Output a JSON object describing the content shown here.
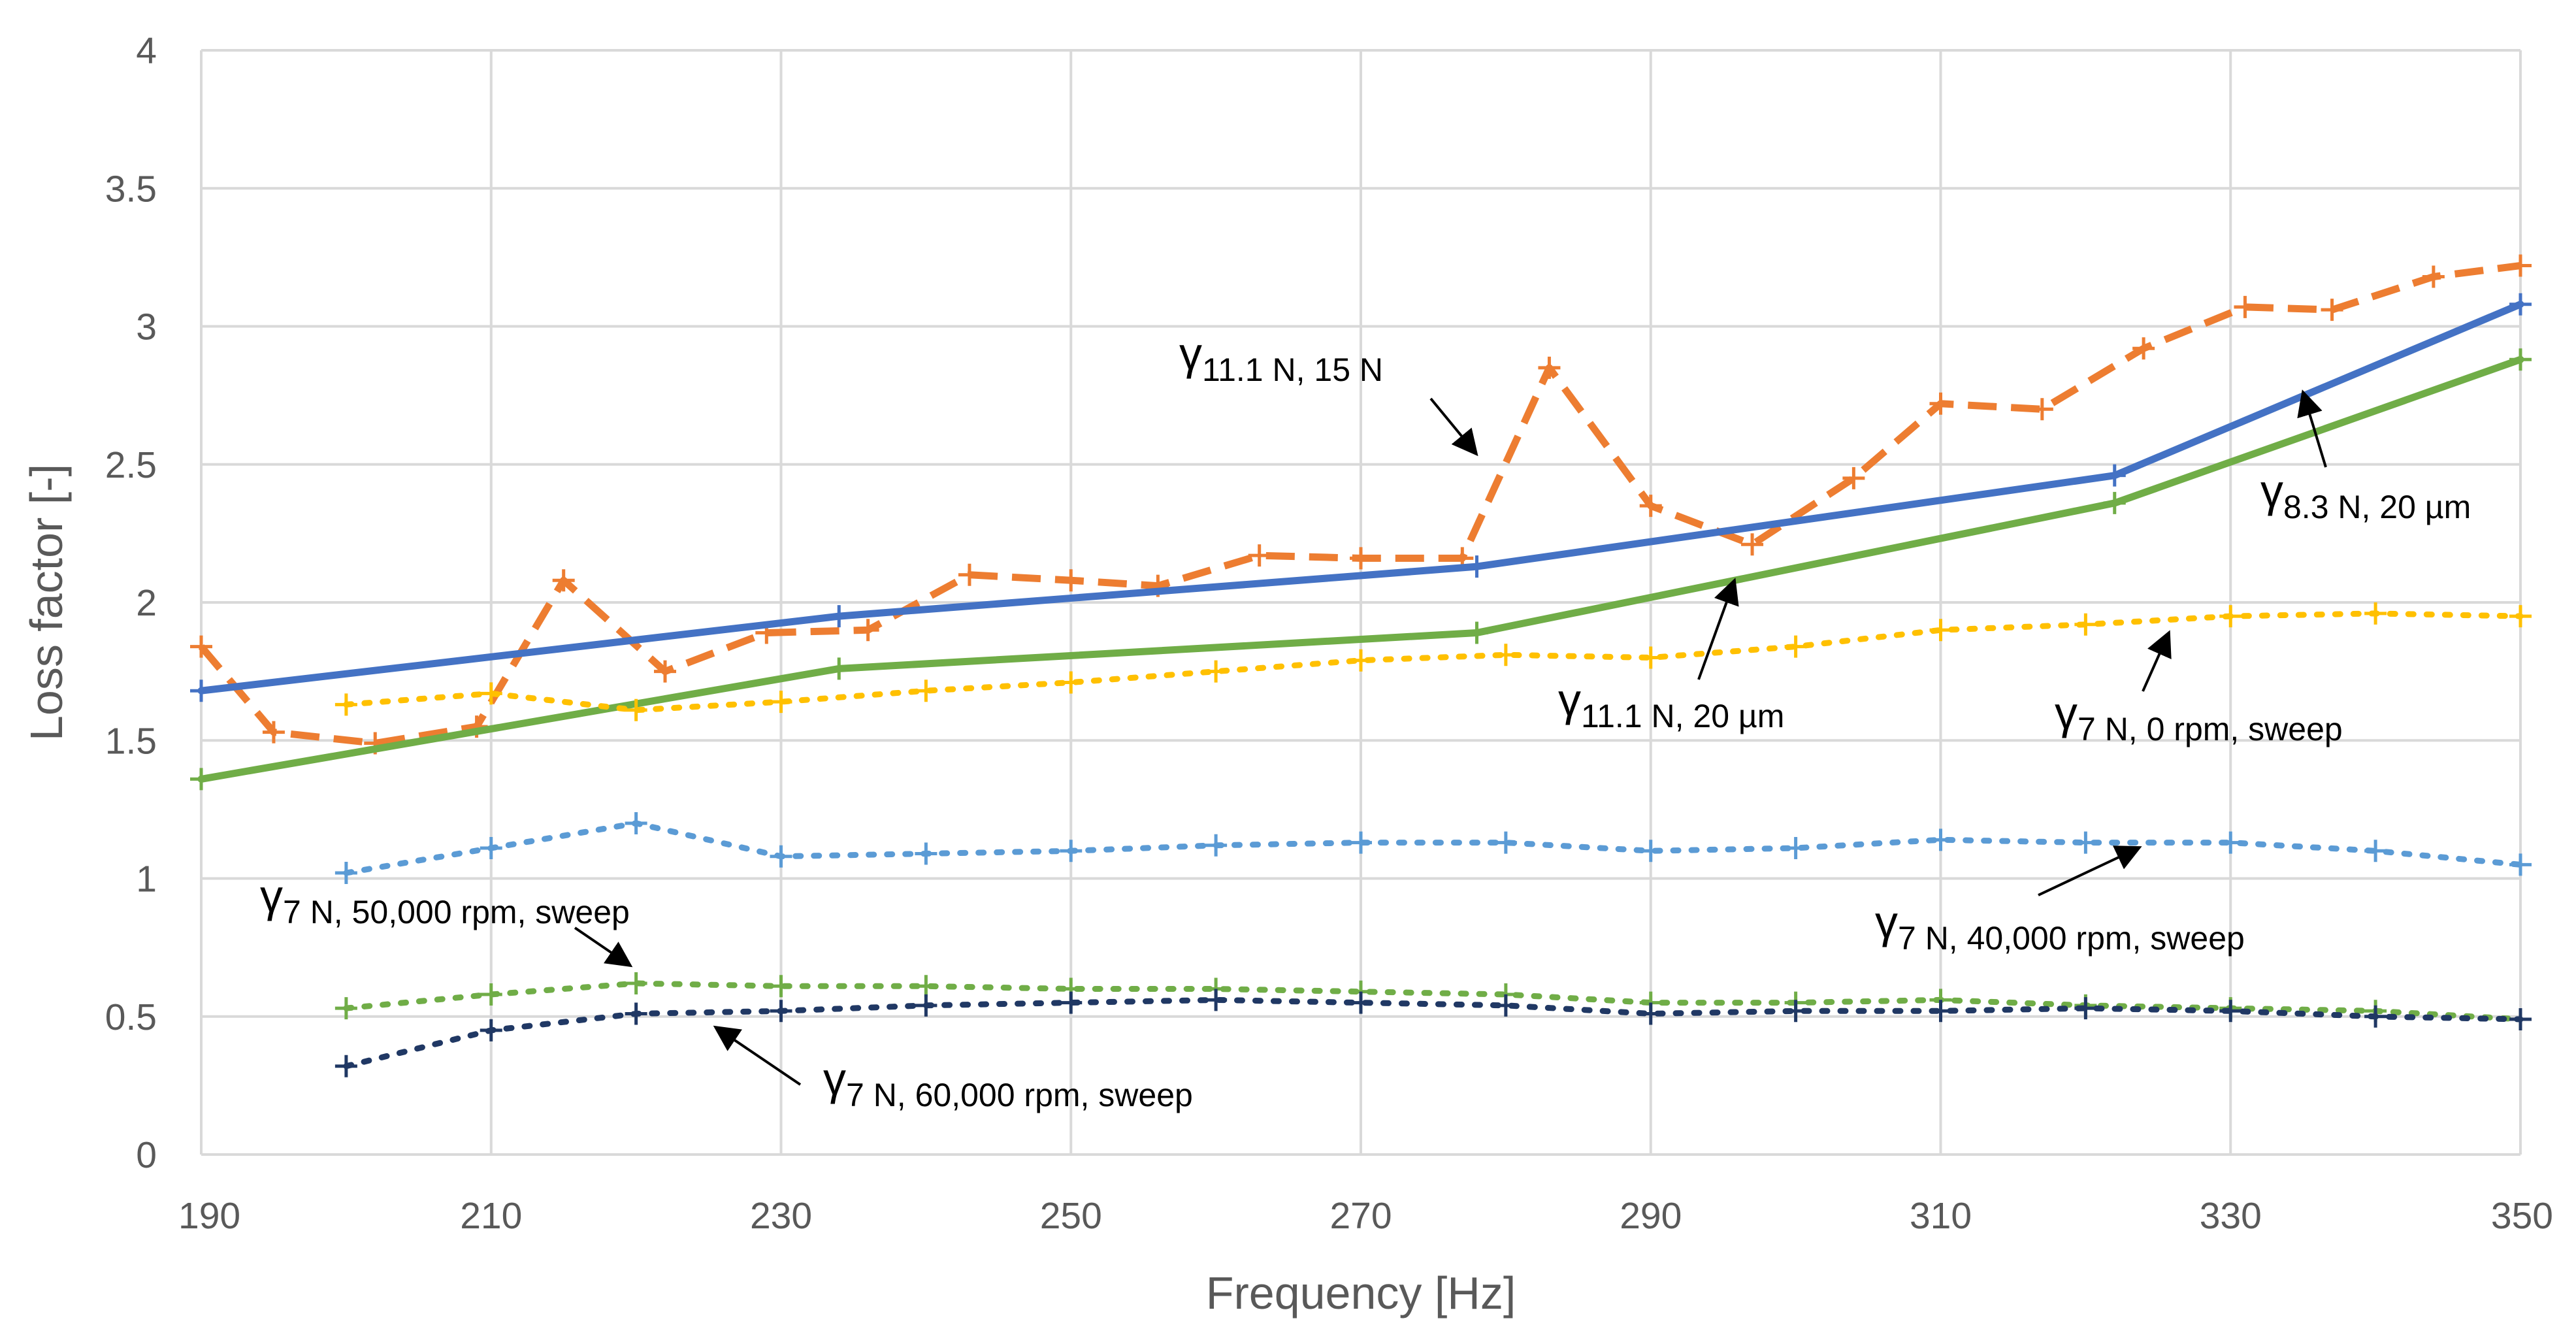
{
  "chart_data": {
    "type": "line",
    "title": "",
    "xlabel": "Frequency [Hz]",
    "ylabel": "Loss factor [-]",
    "xlim": [
      190,
      350
    ],
    "ylim": [
      0,
      4
    ],
    "x_ticks": [
      "190",
      "210",
      "230",
      "250",
      "270",
      "290",
      "310",
      "330",
      "350"
    ],
    "y_ticks": [
      "0",
      "0.5",
      "1",
      "1.5",
      "2",
      "2.5",
      "3",
      "3.5",
      "4"
    ],
    "grid": true,
    "legend": "none (series identified by arrow annotations)",
    "series": [
      {
        "id": "s-11-1n-15n",
        "name": "γ11.1 N, 15 N",
        "symbol": "γ",
        "subscript": "11.1 N, 15 N",
        "color": "#ED7D31",
        "style": "dashed",
        "x": [
          190,
          195,
          202,
          209,
          215,
          222,
          229,
          236,
          243,
          250,
          256,
          263,
          270,
          277,
          283,
          290,
          297,
          304,
          310,
          317,
          324,
          331,
          337,
          344,
          350
        ],
        "y": [
          1.84,
          1.53,
          1.49,
          1.55,
          2.08,
          1.75,
          1.89,
          1.9,
          2.1,
          2.08,
          2.06,
          2.17,
          2.16,
          2.16,
          2.85,
          2.35,
          2.21,
          2.45,
          2.72,
          2.7,
          2.92,
          3.07,
          3.06,
          3.18,
          3.22
        ]
      },
      {
        "id": "s-8-3n-20um",
        "name": "γ8.3 N, 20 µm",
        "symbol": "γ",
        "subscript": "8.3 N, 20 µm",
        "color": "#4472C4",
        "style": "solid",
        "x": [
          190,
          234,
          278,
          322,
          350
        ],
        "y": [
          1.68,
          1.95,
          2.13,
          2.46,
          3.08
        ]
      },
      {
        "id": "s-11-1n-20um",
        "name": "γ11.1 N, 20 µm",
        "symbol": "γ",
        "subscript": "11.1 N, 20 µm",
        "color": "#70AD47",
        "style": "solid",
        "x": [
          190,
          234,
          278,
          322,
          350
        ],
        "y": [
          1.36,
          1.76,
          1.89,
          2.36,
          2.88
        ]
      },
      {
        "id": "s-7n-0rpm",
        "name": "γ7 N, 0 rpm, sweep",
        "symbol": "γ",
        "subscript": "7 N, 0 rpm, sweep",
        "color": "#FFC000",
        "style": "dotted",
        "x": [
          200,
          210,
          220,
          230,
          240,
          250,
          260,
          270,
          280,
          290,
          300,
          310,
          320,
          330,
          340,
          350
        ],
        "y": [
          1.63,
          1.67,
          1.61,
          1.64,
          1.68,
          1.71,
          1.75,
          1.79,
          1.81,
          1.8,
          1.84,
          1.9,
          1.92,
          1.95,
          1.96,
          1.95
        ]
      },
      {
        "id": "s-7n-40000rpm",
        "name": "γ7 N, 40,000 rpm, sweep",
        "symbol": "γ",
        "subscript": "7 N, 40,000 rpm, sweep",
        "color": "#5B9BD5",
        "style": "dotted",
        "x": [
          200,
          210,
          220,
          230,
          240,
          250,
          260,
          270,
          280,
          290,
          300,
          310,
          320,
          330,
          340,
          350
        ],
        "y": [
          1.02,
          1.11,
          1.2,
          1.08,
          1.09,
          1.1,
          1.12,
          1.13,
          1.13,
          1.1,
          1.11,
          1.14,
          1.13,
          1.13,
          1.1,
          1.05
        ]
      },
      {
        "id": "s-7n-50000rpm",
        "name": "γ7 N, 50,000 rpm, sweep",
        "symbol": "γ",
        "subscript": "7 N, 50,000 rpm, sweep",
        "color": "#70AD47",
        "style": "dotted",
        "x": [
          200,
          210,
          220,
          230,
          240,
          250,
          260,
          270,
          280,
          290,
          300,
          310,
          320,
          330,
          340,
          350
        ],
        "y": [
          0.53,
          0.58,
          0.62,
          0.61,
          0.61,
          0.6,
          0.6,
          0.59,
          0.58,
          0.55,
          0.55,
          0.56,
          0.54,
          0.53,
          0.52,
          0.49
        ]
      },
      {
        "id": "s-7n-60000rpm",
        "name": "γ7 N, 60,000 rpm, sweep",
        "symbol": "γ",
        "subscript": "7 N, 60,000 rpm, sweep",
        "color": "#203864",
        "style": "dotted",
        "x": [
          200,
          210,
          220,
          230,
          240,
          250,
          260,
          270,
          280,
          290,
          300,
          310,
          320,
          330,
          340,
          350
        ],
        "y": [
          0.32,
          0.45,
          0.51,
          0.52,
          0.54,
          0.55,
          0.56,
          0.55,
          0.54,
          0.51,
          0.52,
          0.52,
          0.53,
          0.52,
          0.5,
          0.49
        ]
      }
    ]
  }
}
